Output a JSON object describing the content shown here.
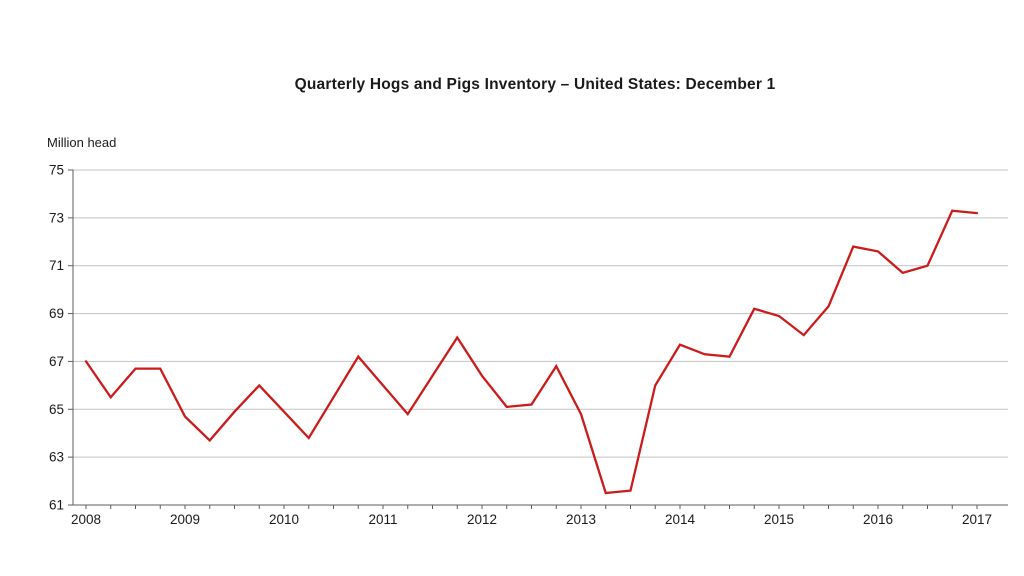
{
  "title": "Quarterly Hogs and Pigs Inventory – United States: December 1",
  "y_axis_label": "Million head",
  "colors": {
    "line": "#cc1b1b",
    "gridline": "#c2c2c2",
    "axis": "#5e5e5e",
    "text": "#1a1a1a"
  },
  "chart_data": {
    "type": "line",
    "title": "Quarterly Hogs and Pigs Inventory – United States: December 1",
    "ylabel": "Million head",
    "ylim": [
      61,
      75
    ],
    "y_ticks": [
      61,
      63,
      65,
      67,
      69,
      71,
      73,
      75
    ],
    "x_tick_labels": [
      "2008",
      "2009",
      "2010",
      "2011",
      "2012",
      "2013",
      "2014",
      "2015",
      "2016",
      "2017"
    ],
    "points_per_year": 4,
    "first_point_at_tick": "2008",
    "last_point_at_tick": "2017",
    "grid": "horizontal-only",
    "legend": "none",
    "series": [
      {
        "name": "Quarterly hogs and pigs inventory (million head)",
        "values": [
          67.0,
          65.5,
          66.7,
          66.7,
          64.7,
          63.7,
          64.9,
          66.0,
          64.9,
          63.8,
          65.5,
          67.2,
          66.0,
          64.8,
          66.4,
          68.0,
          66.4,
          65.1,
          65.2,
          66.8,
          64.8,
          61.5,
          61.6,
          66.0,
          67.7,
          67.3,
          67.2,
          69.2,
          68.9,
          68.1,
          69.3,
          71.8,
          71.6,
          70.7,
          71.0,
          73.3,
          73.2
        ]
      }
    ]
  }
}
